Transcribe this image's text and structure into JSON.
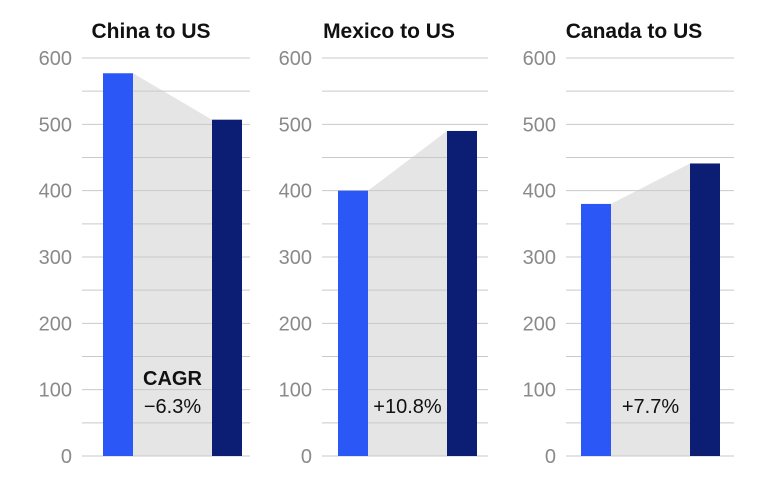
{
  "chart_data": [
    {
      "type": "bar",
      "title": "China to US",
      "categories": [
        "",
        ""
      ],
      "values": [
        577,
        507
      ],
      "ylim": [
        0,
        600
      ],
      "yticks": [
        "0",
        "100",
        "200",
        "300",
        "400",
        "500",
        "600"
      ],
      "grid": true,
      "cagr_label": "CAGR",
      "cagr_value": "−6.3%"
    },
    {
      "type": "bar",
      "title": "Mexico to US",
      "categories": [
        "",
        ""
      ],
      "values": [
        400,
        490
      ],
      "ylim": [
        0,
        600
      ],
      "yticks": [
        "0",
        "100",
        "200",
        "300",
        "400",
        "500",
        "600"
      ],
      "grid": true,
      "cagr_label": "",
      "cagr_value": "+10.8%"
    },
    {
      "type": "bar",
      "title": "Canada to US",
      "categories": [
        "",
        ""
      ],
      "values": [
        380,
        441
      ],
      "ylim": [
        0,
        600
      ],
      "yticks": [
        "0",
        "100",
        "200",
        "300",
        "400",
        "500",
        "600"
      ],
      "grid": true,
      "cagr_label": "",
      "cagr_value": "+7.7%"
    }
  ],
  "colors": {
    "bar_first": "#2a57f5",
    "bar_second": "#0b1e73",
    "connector_fill": "#e5e5e5",
    "grid": "#c9c9c9",
    "tick_text": "#8a8a8a",
    "title_text": "#111111"
  }
}
